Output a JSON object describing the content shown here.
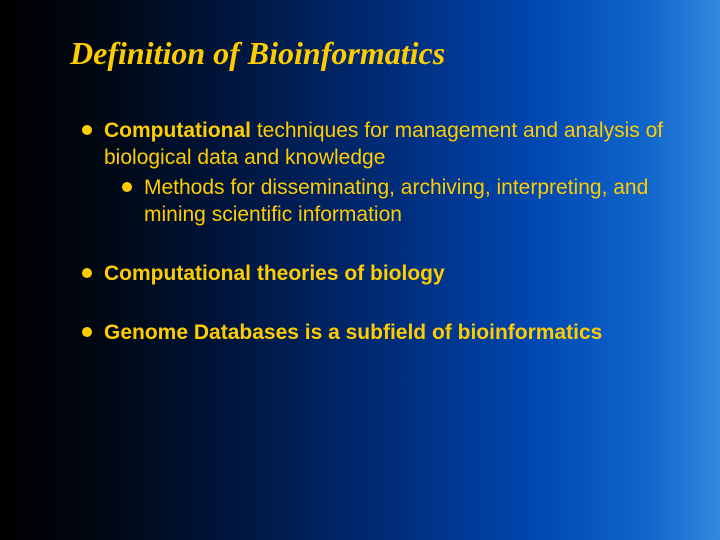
{
  "slide": {
    "title": "Definition of Bioinformatics",
    "bullets": [
      {
        "lead": "Computational",
        "rest": " techniques for management and analysis of biological data and knowledge",
        "sub": [
          {
            "lead": "Methods",
            "rest": " for disseminating, archiving, interpreting, and mining scientific information"
          }
        ]
      },
      {
        "lead": "Computational",
        "rest": " theories of biology",
        "bold_all": true
      },
      {
        "lead": "Genome",
        "rest": " Databases is a subfield of bioinformatics",
        "bold_all": true
      }
    ],
    "colors": {
      "text": "#ffcc00",
      "bullet": "#ffcc00",
      "bg_gradient": [
        "#000000",
        "#000814",
        "#001845",
        "#002d7a",
        "#0048b3",
        "#1166cc",
        "#3388dd"
      ]
    },
    "typography": {
      "title_font": "Times New Roman",
      "title_size_pt": 32,
      "title_style": "bold italic",
      "body_font": "Arial",
      "body_size_pt": 21
    }
  }
}
